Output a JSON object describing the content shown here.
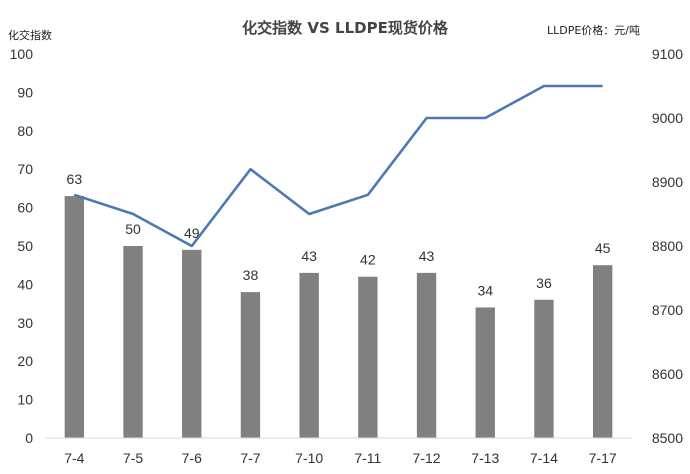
{
  "chart_data": {
    "type": "bar+line",
    "title": "化交指数 VS LLDPE现货价格",
    "y_left_label": "化交指数",
    "y_right_label": "LLDPE价格：元/吨",
    "categories": [
      "7-4",
      "7-5",
      "7-6",
      "7-7",
      "7-10",
      "7-11",
      "7-12",
      "7-13",
      "7-14",
      "7-17"
    ],
    "ylim_left": [
      0,
      100
    ],
    "yticks_left": [
      "0",
      "10",
      "20",
      "30",
      "40",
      "50",
      "60",
      "70",
      "80",
      "90",
      "100"
    ],
    "ylim_right": [
      8500,
      9100
    ],
    "yticks_right": [
      "8500",
      "8600",
      "8700",
      "8800",
      "8900",
      "9000",
      "9100"
    ],
    "grid": false,
    "series": [
      {
        "type": "bar",
        "axis": "left",
        "color": "#808080",
        "values": [
          63,
          50,
          49,
          38,
          43,
          42,
          43,
          34,
          36,
          45
        ],
        "labels": [
          "63",
          "50",
          "49",
          "38",
          "43",
          "42",
          "43",
          "34",
          "36",
          "45"
        ]
      },
      {
        "type": "line",
        "axis": "right",
        "color": "#4a7ab6",
        "values": [
          8880,
          8850,
          8800,
          8920,
          8850,
          8880,
          9000,
          9000,
          9050,
          9050
        ]
      }
    ]
  }
}
